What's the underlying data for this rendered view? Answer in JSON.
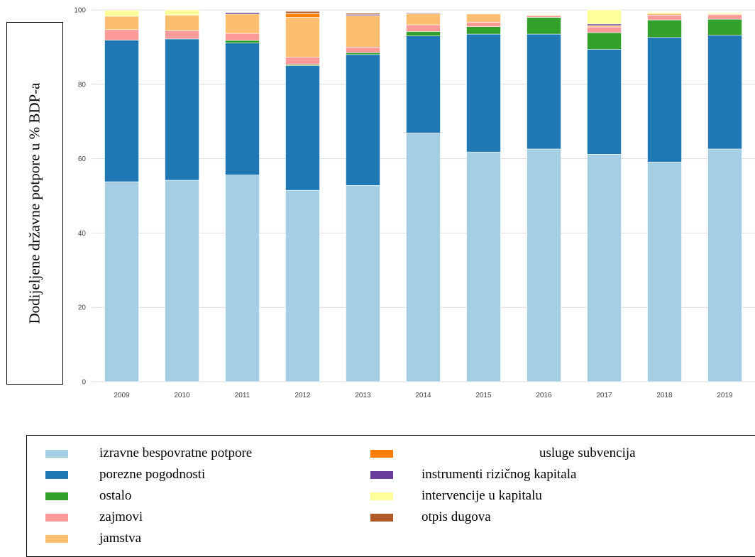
{
  "chart_data": {
    "type": "bar",
    "stacked": true,
    "ylabel": "Dodijeljene državne potpore u % BDP-a",
    "ylim": [
      0,
      100
    ],
    "yticks": [
      "0",
      "20",
      "40",
      "60",
      "80",
      "100"
    ],
    "categories": [
      "2009",
      "2010",
      "2011",
      "2012",
      "2013",
      "2014",
      "2015",
      "2016",
      "2017",
      "2018",
      "2019"
    ],
    "grid": true,
    "legend_position": "bottom",
    "series": [
      {
        "name": "izravne bespovratne potpore",
        "color": "#a6cee3",
        "values": [
          53.8,
          54.2,
          55.6,
          51.5,
          52.8,
          66.9,
          61.8,
          62.6,
          61.2,
          59.1,
          62.6
        ]
      },
      {
        "name": "porezne pogodnosti",
        "color": "#1f78b4",
        "values": [
          38.1,
          38.0,
          35.5,
          33.5,
          35.2,
          26.1,
          31.7,
          30.9,
          28.2,
          33.5,
          30.6
        ]
      },
      {
        "name": "ostalo",
        "color": "#33a02c",
        "values": [
          0.0,
          0.0,
          0.7,
          0.3,
          0.5,
          1.2,
          2.0,
          4.5,
          4.5,
          4.7,
          4.3
        ]
      },
      {
        "name": "zajmovi",
        "color": "#fb9a99",
        "values": [
          2.8,
          2.2,
          1.9,
          2.0,
          1.5,
          1.8,
          1.2,
          0.5,
          1.5,
          1.3,
          1.2
        ]
      },
      {
        "name": "jamstva",
        "color": "#fdbf6f",
        "values": [
          3.6,
          4.2,
          5.2,
          10.7,
          8.5,
          3.0,
          2.2,
          0.1,
          0.4,
          0.4,
          0.2
        ]
      },
      {
        "name": "usluge subvencija",
        "color": "#ff7f00",
        "values": [
          0.0,
          0.0,
          0.0,
          1.0,
          0.0,
          0.1,
          0.1,
          0.0,
          0.0,
          0.0,
          0.0
        ]
      },
      {
        "name": "instrumenti rizičnog kapitala",
        "color": "#6a3d9a",
        "values": [
          0.0,
          0.0,
          0.4,
          0.0,
          0.3,
          0.2,
          0.1,
          0.1,
          0.4,
          0.0,
          0.0
        ]
      },
      {
        "name": "intervencije u kapitalu",
        "color": "#ffff99",
        "values": [
          1.6,
          1.4,
          0.0,
          0.1,
          0.0,
          0.0,
          0.1,
          0.2,
          3.8,
          0.4,
          0.3
        ]
      },
      {
        "name": "otpis dugova",
        "color": "#b15928",
        "values": [
          0.0,
          0.0,
          0.0,
          0.5,
          0.3,
          0.0,
          0.0,
          0.0,
          0.0,
          0.0,
          0.0
        ]
      }
    ]
  },
  "legend": {
    "column1": [
      {
        "label": "izravne bespovratne potpore",
        "color": "#a6cee3"
      },
      {
        "label": "porezne pogodnosti",
        "color": "#1f78b4"
      },
      {
        "label": "ostalo",
        "color": "#33a02c"
      },
      {
        "label": "zajmovi",
        "color": "#fb9a99"
      },
      {
        "label": "jamstva",
        "color": "#fdbf6f"
      }
    ],
    "column2": [
      {
        "label": "usluge subvencija",
        "color": "#ff7f00"
      },
      {
        "label": "instrumenti rizičnog kapitala",
        "color": "#6a3d9a"
      },
      {
        "label": "intervencije u kapitalu",
        "color": "#ffff99"
      },
      {
        "label": "otpis dugova",
        "color": "#b15928"
      }
    ]
  }
}
